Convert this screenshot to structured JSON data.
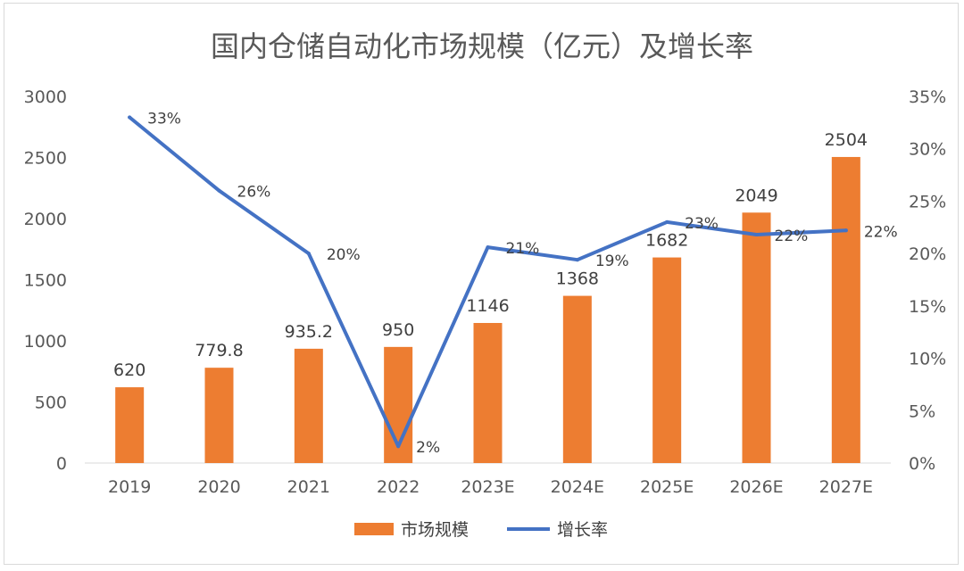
{
  "chart_data": {
    "type": "bar+line",
    "title": "国内仓储自动化市场规模（亿元）及增长率",
    "categories": [
      "2019",
      "2020",
      "2021",
      "2022",
      "2023E",
      "2024E",
      "2025E",
      "2026E",
      "2027E"
    ],
    "series": [
      {
        "name": "市场规模",
        "type": "bar",
        "axis": "left",
        "color": "#ED7D31",
        "values": [
          620,
          779.8,
          935.2,
          950,
          1146,
          1368,
          1682,
          2049,
          2504
        ],
        "labels": [
          "620",
          "779.8",
          "935.2",
          "950",
          "1146",
          "1368",
          "1682",
          "2049",
          "2504"
        ]
      },
      {
        "name": "增长率",
        "type": "line",
        "axis": "right",
        "color": "#4472C4",
        "values": [
          0.33,
          0.26,
          0.2,
          0.016,
          0.206,
          0.194,
          0.23,
          0.218,
          0.222
        ],
        "labels": [
          "33%",
          "26%",
          "20%",
          "2%",
          "21%",
          "19%",
          "23%",
          "22%",
          "22%"
        ]
      }
    ],
    "y_left": {
      "min": 0,
      "max": 3000,
      "step": 500,
      "ticks": [
        "0",
        "500",
        "1000",
        "1500",
        "2000",
        "2500",
        "3000"
      ]
    },
    "y_right": {
      "min": 0,
      "max": 0.35,
      "step": 0.05,
      "ticks": [
        "0%",
        "5%",
        "10%",
        "15%",
        "20%",
        "25%",
        "30%",
        "35%"
      ]
    },
    "legend": {
      "position": "bottom",
      "items": [
        "市场规模",
        "增长率"
      ]
    },
    "grid": false
  }
}
